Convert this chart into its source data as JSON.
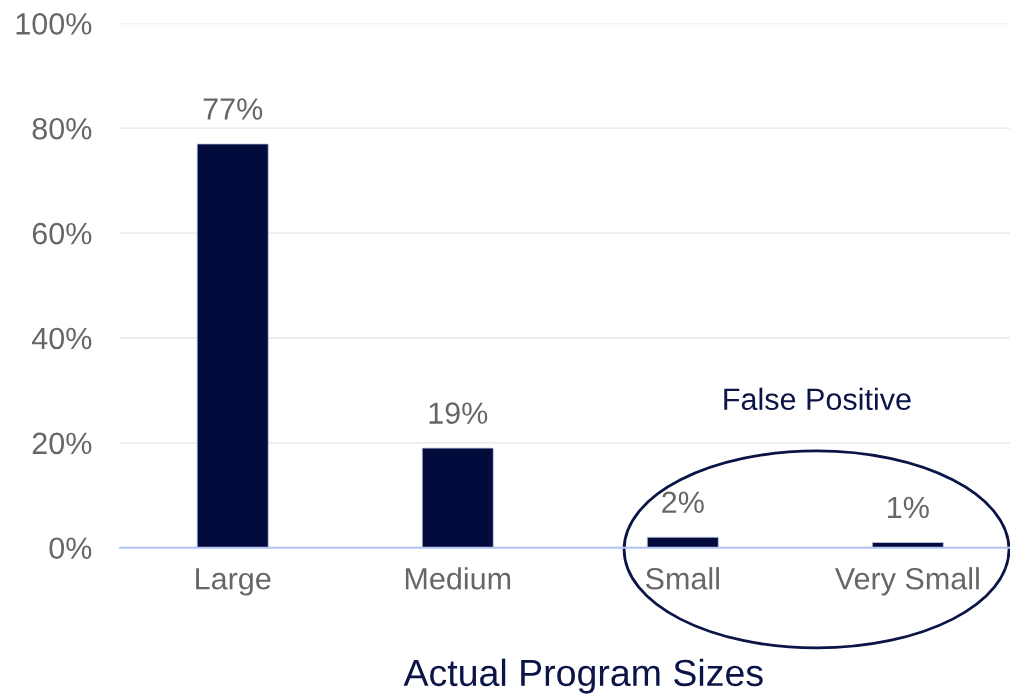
{
  "chart_data": {
    "type": "bar",
    "categories": [
      "Large",
      "Medium",
      "Small",
      "Very Small"
    ],
    "values": [
      77,
      19,
      2,
      1
    ],
    "color": "#020b3b",
    "value_labels": [
      "77%",
      "19%",
      "2%",
      "1%"
    ],
    "xlabel": "Actual Program Sizes",
    "ylim": [
      0,
      100
    ],
    "yticks": [
      {
        "value": 0,
        "label": "0%"
      },
      {
        "value": 20,
        "label": "20%"
      },
      {
        "value": 40,
        "label": "40%"
      },
      {
        "value": 60,
        "label": "60%"
      },
      {
        "value": 80,
        "label": "80%"
      },
      {
        "value": 100,
        "label": "100%"
      }
    ],
    "grid": "y",
    "annotations": [
      "False Positive"
    ]
  }
}
